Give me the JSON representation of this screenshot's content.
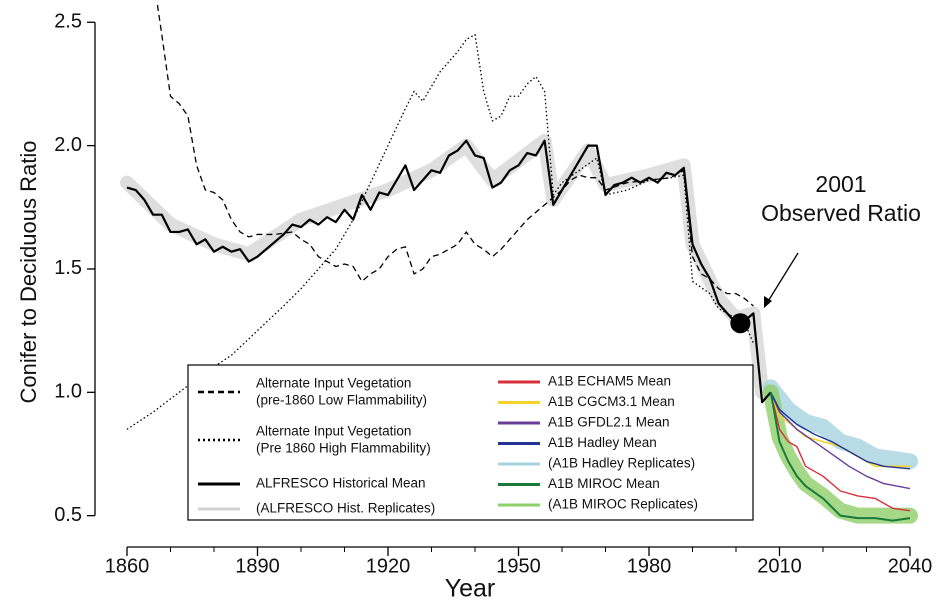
{
  "chart_data": {
    "type": "line",
    "x_label": "Year",
    "y_label": "Conifer to Deciduous Ratio",
    "xlim": [
      1860,
      2040
    ],
    "ylim": [
      0.45,
      2.57
    ],
    "xticks": [
      1860,
      1890,
      1920,
      1950,
      1980,
      2010,
      2040
    ],
    "xminorticks": [
      1870,
      1880,
      1900,
      1910,
      1930,
      1940,
      1960,
      1970,
      1990,
      2000,
      2020,
      2030
    ],
    "yticks": [
      0.5,
      {
        "value": 1,
        "label": "1.0"
      },
      1.5,
      {
        "value": 2,
        "label": "2.0"
      },
      2.5
    ],
    "series": [
      {
        "name": [
          "Alternate Input Vegetation",
          "(pre-1860 Low Flammability)"
        ],
        "color": "#000000",
        "style": "dashed",
        "x": [
          1867,
          1868,
          1870,
          1872,
          1874,
          1876,
          1878,
          1880,
          1882,
          1884,
          1886,
          1888,
          1890,
          1894,
          1898,
          1900,
          1902,
          1904,
          1906,
          1908,
          1910,
          1912,
          1914,
          1916,
          1918,
          1920,
          1922,
          1924,
          1926,
          1928,
          1930,
          1932,
          1934,
          1936,
          1938,
          1940,
          1942,
          1944,
          1946,
          1948,
          1950,
          1952,
          1954,
          1956,
          1958,
          1960,
          1962,
          1964,
          1966,
          1968,
          1970,
          1975,
          1980,
          1985,
          1988,
          1990,
          1992,
          1994,
          1996,
          1998,
          2000,
          2002,
          2004
        ],
        "values": [
          2.57,
          2.45,
          2.2,
          2.17,
          2.12,
          1.92,
          1.82,
          1.81,
          1.78,
          1.7,
          1.65,
          1.63,
          1.64,
          1.64,
          1.65,
          1.62,
          1.6,
          1.55,
          1.53,
          1.51,
          1.52,
          1.51,
          1.45,
          1.48,
          1.5,
          1.55,
          1.58,
          1.59,
          1.48,
          1.5,
          1.55,
          1.56,
          1.58,
          1.6,
          1.65,
          1.6,
          1.58,
          1.55,
          1.58,
          1.62,
          1.66,
          1.7,
          1.73,
          1.76,
          1.79,
          1.82,
          1.86,
          1.88,
          1.87,
          1.87,
          1.82,
          1.85,
          1.86,
          1.87,
          1.9,
          1.55,
          1.48,
          1.46,
          1.42,
          1.4,
          1.4,
          1.38,
          1.35
        ]
      },
      {
        "name": [
          "Alternate Input Vegetation",
          "(Pre 1860 High Flammability)"
        ],
        "color": "#000000",
        "style": "dotted",
        "x": [
          1860,
          1866,
          1872,
          1878,
          1884,
          1890,
          1896,
          1900,
          1904,
          1908,
          1912,
          1916,
          1920,
          1924,
          1926,
          1928,
          1932,
          1936,
          1938,
          1940,
          1942,
          1944,
          1946,
          1948,
          1950,
          1952,
          1954,
          1956,
          1958,
          1960,
          1964,
          1968,
          1970,
          1975,
          1980,
          1985,
          1988,
          1990,
          1994,
          1996,
          1998,
          2000,
          2002,
          2004
        ],
        "values": [
          0.85,
          0.92,
          1.0,
          1.08,
          1.15,
          1.25,
          1.35,
          1.42,
          1.5,
          1.58,
          1.7,
          1.85,
          2.0,
          2.15,
          2.22,
          2.18,
          2.3,
          2.38,
          2.43,
          2.45,
          2.22,
          2.1,
          2.12,
          2.2,
          2.2,
          2.25,
          2.28,
          2.22,
          1.8,
          1.85,
          1.9,
          1.95,
          1.8,
          1.82,
          1.86,
          1.87,
          1.88,
          1.45,
          1.4,
          1.34,
          1.32,
          1.3,
          1.28,
          1.2
        ]
      },
      {
        "name": "ALFRESCO Historical Mean",
        "color": "#000000",
        "style": "solid",
        "width": 2.2,
        "x": [
          1860,
          1862,
          1864,
          1866,
          1868,
          1870,
          1872,
          1874,
          1876,
          1878,
          1880,
          1882,
          1884,
          1886,
          1888,
          1890,
          1892,
          1894,
          1896,
          1898,
          1900,
          1902,
          1904,
          1906,
          1908,
          1910,
          1912,
          1914,
          1916,
          1918,
          1920,
          1922,
          1924,
          1926,
          1928,
          1930,
          1932,
          1934,
          1936,
          1938,
          1940,
          1942,
          1944,
          1946,
          1948,
          1950,
          1952,
          1954,
          1956,
          1958,
          1960,
          1962,
          1964,
          1966,
          1968,
          1970,
          1972,
          1974,
          1976,
          1978,
          1980,
          1982,
          1984,
          1986,
          1988,
          1990,
          1992,
          1994,
          1996,
          1998,
          2000,
          2002,
          2004,
          2006,
          2008
        ],
        "values": [
          1.83,
          1.82,
          1.78,
          1.72,
          1.72,
          1.65,
          1.65,
          1.66,
          1.6,
          1.62,
          1.57,
          1.59,
          1.57,
          1.58,
          1.53,
          1.55,
          1.58,
          1.61,
          1.64,
          1.68,
          1.67,
          1.7,
          1.68,
          1.71,
          1.69,
          1.74,
          1.7,
          1.8,
          1.74,
          1.81,
          1.8,
          1.86,
          1.92,
          1.82,
          1.86,
          1.9,
          1.89,
          1.96,
          1.98,
          2.02,
          1.96,
          1.95,
          1.83,
          1.85,
          1.9,
          1.92,
          1.97,
          1.96,
          2.02,
          1.76,
          1.82,
          1.88,
          1.94,
          2.0,
          2.0,
          1.8,
          1.84,
          1.85,
          1.87,
          1.85,
          1.87,
          1.85,
          1.89,
          1.88,
          1.91,
          1.6,
          1.52,
          1.46,
          1.36,
          1.32,
          1.28,
          1.29,
          1.32,
          0.96,
          1.0
        ]
      },
      {
        "name": "(ALFRESCO Hist. Replicates)",
        "color": "#d3d3d3",
        "style": "solid",
        "width": 14,
        "opacity": 0.75,
        "x": [
          1860,
          1870,
          1880,
          1888,
          1900,
          1910,
          1920,
          1930,
          1938,
          1944,
          1956,
          1958,
          1966,
          1970,
          1980,
          1988,
          1990,
          1996,
          2000,
          2004,
          2006
        ],
        "values": [
          1.85,
          1.68,
          1.6,
          1.56,
          1.7,
          1.76,
          1.82,
          1.9,
          2.0,
          1.86,
          2.02,
          1.78,
          1.98,
          1.84,
          1.88,
          1.92,
          1.6,
          1.38,
          1.3,
          1.32,
          1.0
        ]
      },
      {
        "name": "A1B ECHAM5 Mean",
        "color": "#d7303a",
        "style": "solid",
        "width": 1.4,
        "x": [
          2008,
          2010,
          2012,
          2014,
          2016,
          2020,
          2024,
          2028,
          2032,
          2036,
          2040
        ],
        "values": [
          1.0,
          0.85,
          0.8,
          0.78,
          0.7,
          0.66,
          0.6,
          0.58,
          0.57,
          0.53,
          0.52
        ]
      },
      {
        "name": "A1B CGCM3.1 Mean",
        "color": "#f5d327",
        "style": "solid",
        "width": 1.6,
        "x": [
          2008,
          2010,
          2012,
          2016,
          2020,
          2024,
          2028,
          2032,
          2036,
          2040
        ],
        "values": [
          1.0,
          0.9,
          0.88,
          0.82,
          0.8,
          0.78,
          0.74,
          0.7,
          0.7,
          0.7
        ]
      },
      {
        "name": "A1B GFDL2.1 Mean",
        "color": "#6a3d9a",
        "style": "solid",
        "width": 1.4,
        "x": [
          2008,
          2010,
          2014,
          2018,
          2022,
          2026,
          2030,
          2034,
          2040
        ],
        "values": [
          1.0,
          0.92,
          0.85,
          0.8,
          0.75,
          0.7,
          0.66,
          0.63,
          0.61
        ]
      },
      {
        "name": "A1B Hadley Mean",
        "color": "#253494",
        "style": "solid",
        "width": 1.4,
        "x": [
          2008,
          2010,
          2014,
          2018,
          2022,
          2026,
          2030,
          2034,
          2040
        ],
        "values": [
          1.0,
          0.93,
          0.87,
          0.83,
          0.8,
          0.76,
          0.72,
          0.7,
          0.69
        ]
      },
      {
        "name": "(A1B Hadley Replicates)",
        "color": "#a6d3e0",
        "style": "solid",
        "width": 16,
        "opacity": 0.8,
        "x": [
          2008,
          2012,
          2016,
          2020,
          2024,
          2028,
          2032,
          2036,
          2040
        ],
        "values": [
          1.02,
          0.93,
          0.88,
          0.86,
          0.8,
          0.78,
          0.74,
          0.73,
          0.72
        ]
      },
      {
        "name": "A1B MIROC Mean",
        "color": "#1a7a3a",
        "style": "solid",
        "width": 2,
        "x": [
          2008,
          2010,
          2012,
          2014,
          2016,
          2020,
          2024,
          2028,
          2032,
          2036,
          2040
        ],
        "values": [
          1.0,
          0.8,
          0.72,
          0.66,
          0.62,
          0.57,
          0.5,
          0.49,
          0.49,
          0.48,
          0.49
        ]
      },
      {
        "name": "(A1B MIROC Replicates)",
        "color": "#8fcf6a",
        "style": "solid",
        "width": 16,
        "opacity": 0.8,
        "x": [
          2008,
          2010,
          2012,
          2014,
          2016,
          2020,
          2024,
          2028,
          2032,
          2036,
          2040
        ],
        "values": [
          1.0,
          0.82,
          0.74,
          0.68,
          0.63,
          0.58,
          0.52,
          0.5,
          0.5,
          0.5,
          0.5
        ]
      }
    ],
    "draw_order": [
      3,
      8,
      10,
      0,
      1,
      2,
      4,
      5,
      6,
      7,
      9
    ],
    "observed": {
      "x": 2001,
      "y": 1.28
    },
    "annotation": [
      "2001",
      "Observed Ratio"
    ]
  }
}
